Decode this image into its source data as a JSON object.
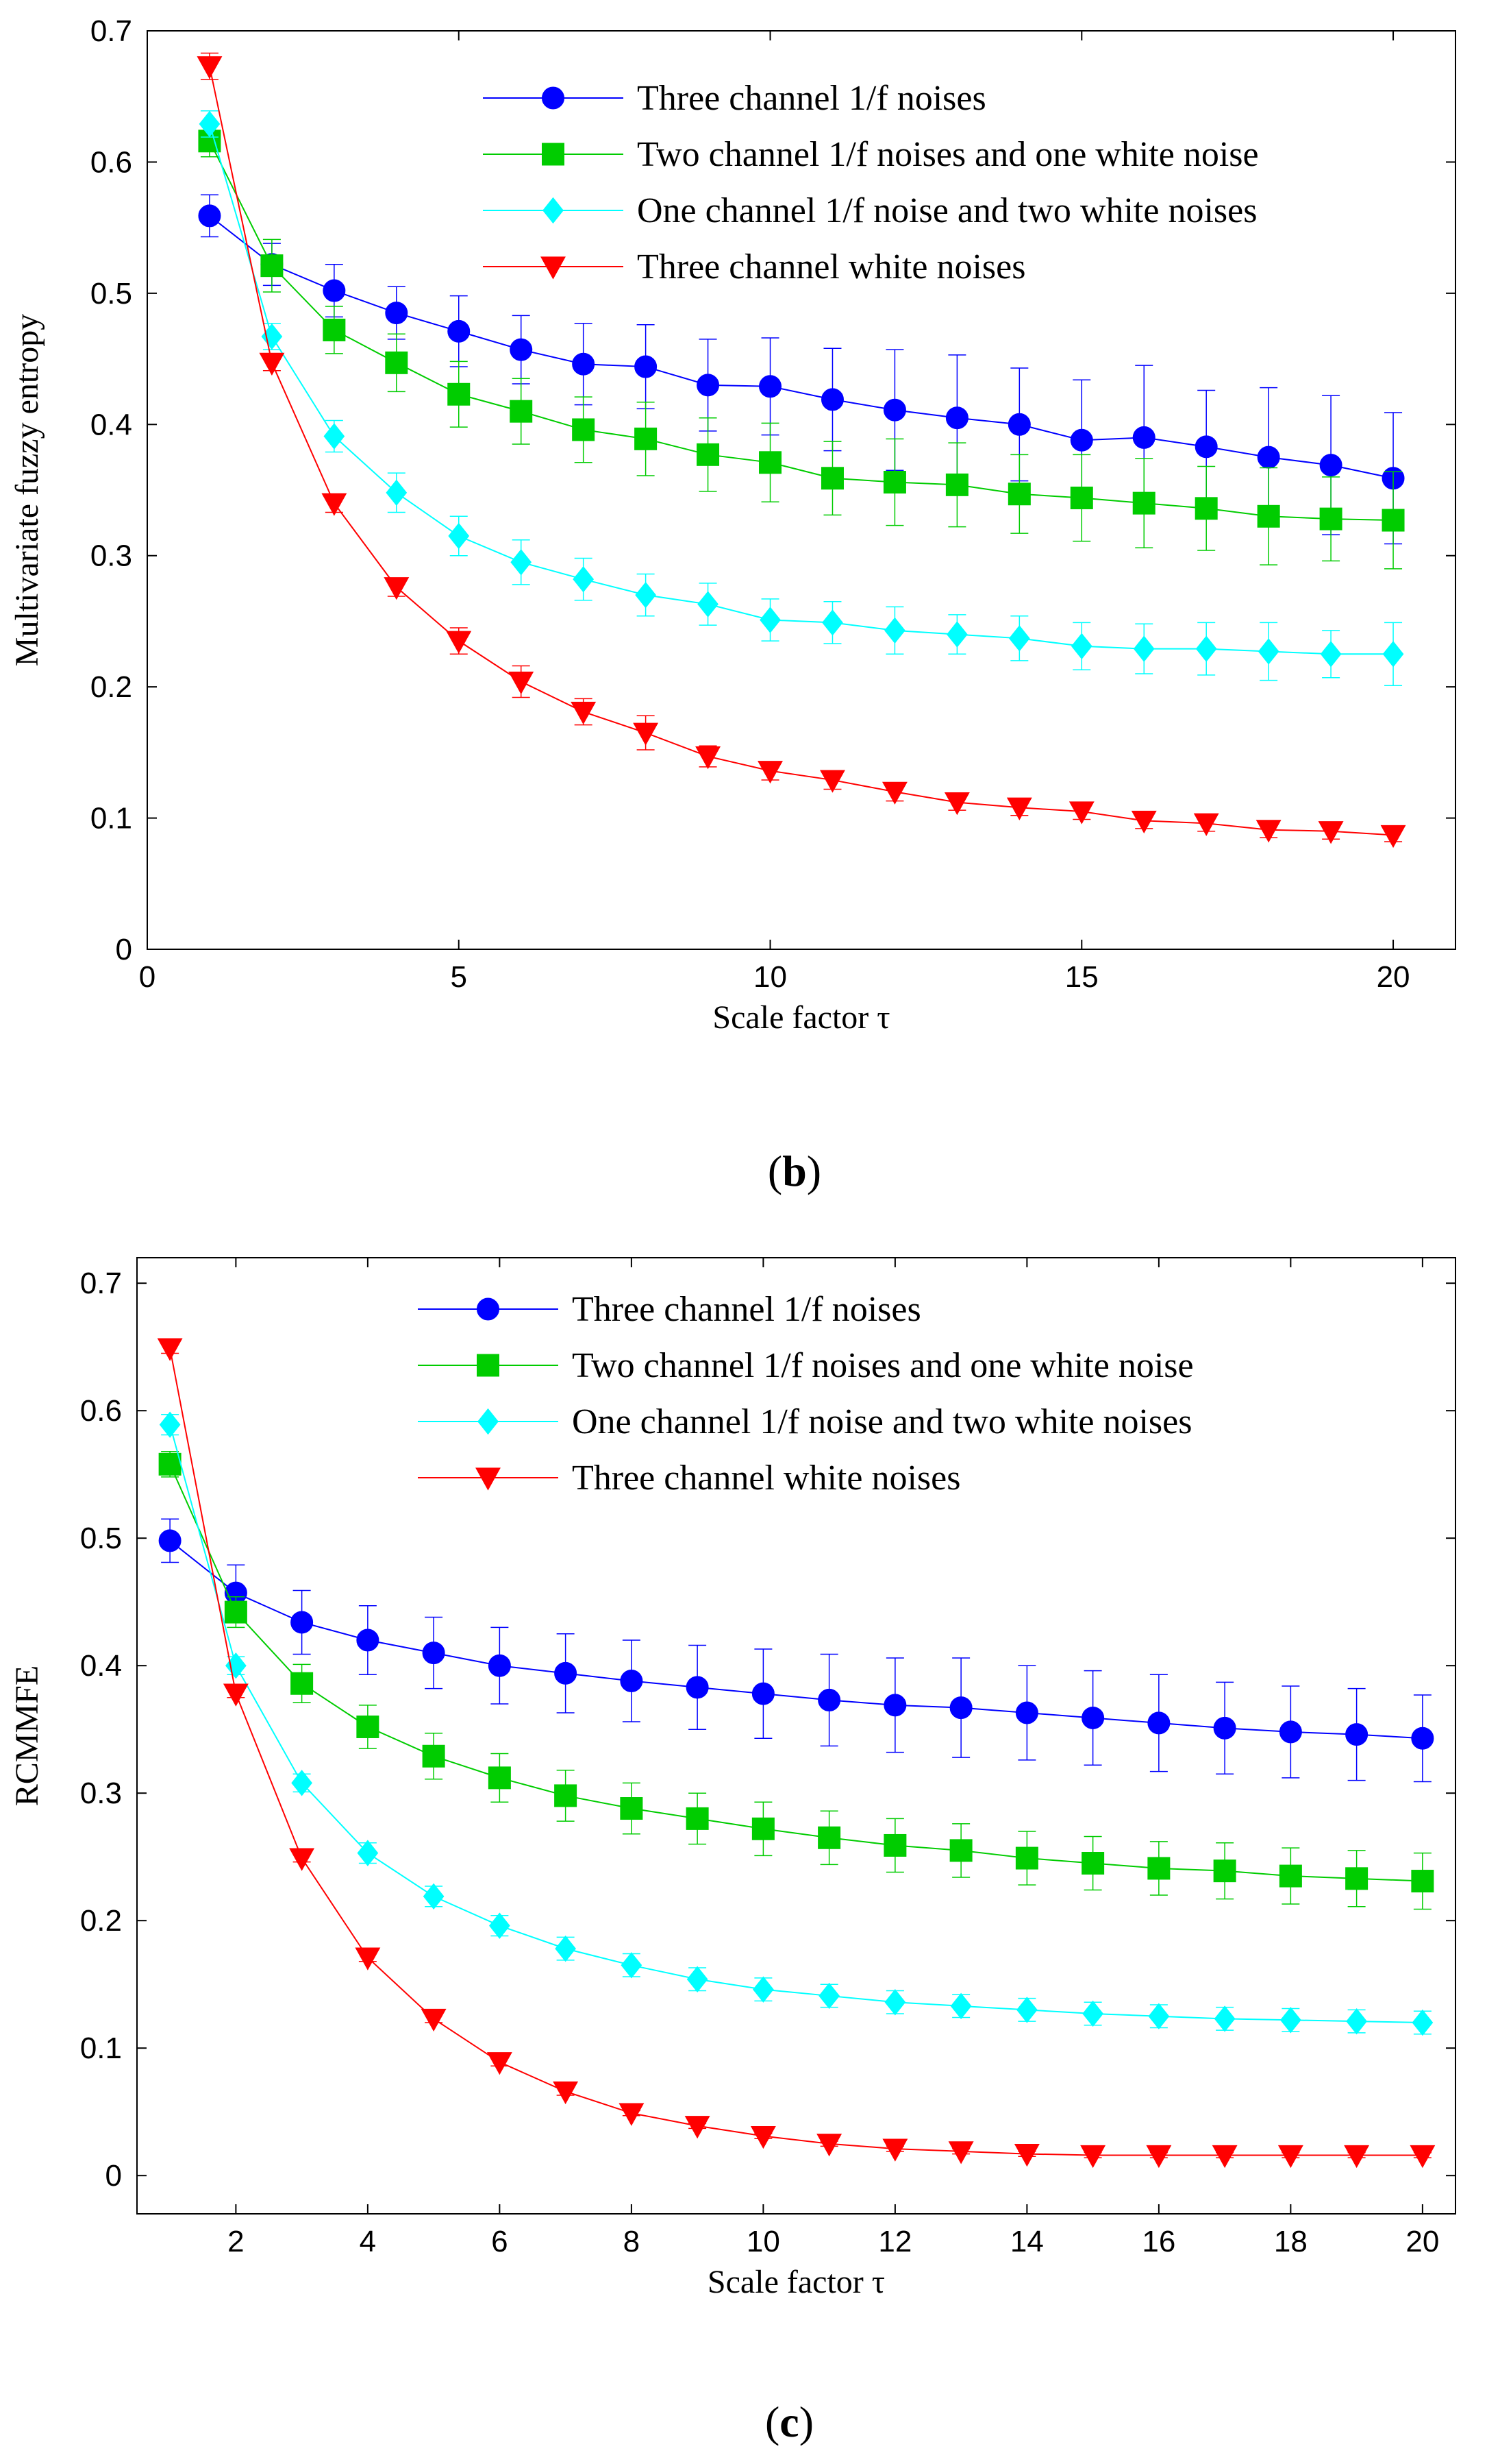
{
  "series_colors": [
    "#0000ff",
    "#00cc00",
    "#00ffff",
    "#ff0000"
  ],
  "series_markers": [
    "circle",
    "square",
    "diamond",
    "triangle-down"
  ],
  "chart_data": [
    {
      "type": "line",
      "panel": "b",
      "caption": {
        "open": "(",
        "letter": "b",
        "close": ")"
      },
      "xlabel": "Scale factor τ",
      "ylabel": "Multivariate fuzzy entropy",
      "xlim": [
        0,
        21
      ],
      "ylim": [
        0,
        0.7
      ],
      "xticks": [
        0,
        5,
        10,
        15,
        20
      ],
      "xtick_labels": [
        "0",
        "5",
        "10",
        "15",
        "20"
      ],
      "yticks": [
        0,
        0.1,
        0.2,
        0.3,
        0.4,
        0.5,
        0.6,
        0.7
      ],
      "ytick_labels": [
        "0",
        "0.1",
        "0.2",
        "0.3",
        "0.4",
        "0.5",
        "0.6",
        "0.7"
      ],
      "legend_position": "top-right",
      "x": [
        1,
        2,
        3,
        4,
        5,
        6,
        7,
        8,
        9,
        10,
        11,
        12,
        13,
        14,
        15,
        16,
        17,
        18,
        19,
        20
      ],
      "series": [
        {
          "name": "Three channel 1/f noises",
          "values": [
            0.559,
            0.522,
            0.502,
            0.485,
            0.471,
            0.457,
            0.446,
            0.444,
            0.43,
            0.429,
            0.419,
            0.411,
            0.405,
            0.4,
            0.388,
            0.39,
            0.383,
            0.375,
            0.369,
            0.359
          ],
          "errors": [
            0.016,
            0.016,
            0.02,
            0.02,
            0.027,
            0.026,
            0.031,
            0.032,
            0.035,
            0.037,
            0.039,
            0.046,
            0.048,
            0.043,
            0.046,
            0.055,
            0.043,
            0.053,
            0.053,
            0.05
          ]
        },
        {
          "name": "Two channel 1/f noises and one white noise",
          "values": [
            0.616,
            0.521,
            0.472,
            0.447,
            0.423,
            0.41,
            0.396,
            0.389,
            0.377,
            0.371,
            0.359,
            0.356,
            0.354,
            0.347,
            0.344,
            0.34,
            0.336,
            0.33,
            0.328,
            0.327
          ],
          "errors": [
            0.012,
            0.02,
            0.018,
            0.022,
            0.025,
            0.025,
            0.025,
            0.028,
            0.028,
            0.03,
            0.028,
            0.033,
            0.032,
            0.03,
            0.033,
            0.034,
            0.032,
            0.037,
            0.032,
            0.037
          ]
        },
        {
          "name": "One channel 1/f noise and two white noises",
          "values": [
            0.629,
            0.467,
            0.391,
            0.348,
            0.315,
            0.295,
            0.282,
            0.27,
            0.263,
            0.251,
            0.249,
            0.243,
            0.24,
            0.237,
            0.231,
            0.229,
            0.229,
            0.227,
            0.225,
            0.225
          ],
          "errors": [
            0.01,
            0.01,
            0.012,
            0.015,
            0.015,
            0.017,
            0.016,
            0.016,
            0.016,
            0.016,
            0.016,
            0.018,
            0.015,
            0.017,
            0.018,
            0.019,
            0.02,
            0.022,
            0.018,
            0.024
          ]
        },
        {
          "name": "Three channel white noises",
          "values": [
            0.673,
            0.447,
            0.34,
            0.276,
            0.235,
            0.204,
            0.181,
            0.165,
            0.147,
            0.136,
            0.129,
            0.12,
            0.112,
            0.108,
            0.105,
            0.098,
            0.096,
            0.091,
            0.09,
            0.087
          ],
          "errors": [
            0.01,
            0.006,
            0.007,
            0.007,
            0.01,
            0.012,
            0.01,
            0.013,
            0.008,
            0.007,
            0.007,
            0.007,
            0.006,
            0.006,
            0.006,
            0.006,
            0.006,
            0.006,
            0.006,
            0.005
          ]
        }
      ]
    },
    {
      "type": "line",
      "panel": "c",
      "caption": {
        "open": "(",
        "letter": "c",
        "close": ")"
      },
      "xlabel": "Scale factor τ",
      "ylabel": "RCMMFE",
      "xlim": [
        0.5,
        20.5
      ],
      "ylim": [
        -0.03,
        0.72
      ],
      "xticks": [
        2,
        4,
        6,
        8,
        10,
        12,
        14,
        16,
        18,
        20
      ],
      "xtick_labels": [
        "2",
        "4",
        "6",
        "8",
        "10",
        "12",
        "14",
        "16",
        "18",
        "20"
      ],
      "yticks": [
        0,
        0.1,
        0.2,
        0.3,
        0.4,
        0.5,
        0.6,
        0.7
      ],
      "ytick_labels": [
        "0",
        "0.1",
        "0.2",
        "0.3",
        "0.4",
        "0.5",
        "0.6",
        "0.7"
      ],
      "legend_position": "top-right",
      "x": [
        1,
        2,
        3,
        4,
        5,
        6,
        7,
        8,
        9,
        10,
        11,
        12,
        13,
        14,
        15,
        16,
        17,
        18,
        19,
        20
      ],
      "series": [
        {
          "name": "Three channel 1/f noises",
          "values": [
            0.498,
            0.457,
            0.434,
            0.42,
            0.41,
            0.4,
            0.394,
            0.388,
            0.383,
            0.378,
            0.373,
            0.369,
            0.367,
            0.363,
            0.359,
            0.355,
            0.351,
            0.348,
            0.346,
            0.343
          ],
          "errors": [
            0.017,
            0.022,
            0.025,
            0.027,
            0.028,
            0.03,
            0.031,
            0.032,
            0.033,
            0.035,
            0.036,
            0.037,
            0.039,
            0.037,
            0.037,
            0.038,
            0.036,
            0.036,
            0.036,
            0.034
          ]
        },
        {
          "name": "Two channel 1/f noises and one white noise",
          "values": [
            0.558,
            0.442,
            0.386,
            0.352,
            0.329,
            0.312,
            0.298,
            0.288,
            0.28,
            0.272,
            0.265,
            0.259,
            0.255,
            0.249,
            0.245,
            0.241,
            0.239,
            0.235,
            0.233,
            0.231
          ],
          "errors": [
            0.01,
            0.012,
            0.015,
            0.017,
            0.018,
            0.019,
            0.02,
            0.02,
            0.02,
            0.021,
            0.021,
            0.021,
            0.021,
            0.021,
            0.021,
            0.021,
            0.022,
            0.022,
            0.022,
            0.022
          ]
        },
        {
          "name": "One channel 1/f noise and two white noises",
          "values": [
            0.589,
            0.4,
            0.308,
            0.253,
            0.219,
            0.196,
            0.178,
            0.165,
            0.154,
            0.146,
            0.141,
            0.136,
            0.133,
            0.13,
            0.127,
            0.125,
            0.123,
            0.122,
            0.121,
            0.12
          ],
          "errors": [
            0.008,
            0.007,
            0.007,
            0.008,
            0.008,
            0.008,
            0.009,
            0.009,
            0.009,
            0.009,
            0.009,
            0.009,
            0.009,
            0.009,
            0.009,
            0.009,
            0.009,
            0.009,
            0.009,
            0.009
          ]
        },
        {
          "name": "Three channel white noises",
          "values": [
            0.649,
            0.378,
            0.249,
            0.171,
            0.123,
            0.089,
            0.066,
            0.049,
            0.039,
            0.031,
            0.025,
            0.021,
            0.019,
            0.017,
            0.016,
            0.016,
            0.016,
            0.016,
            0.016,
            0.016
          ],
          "errors": [
            0.004,
            0.003,
            0.003,
            0.003,
            0.003,
            0.003,
            0.003,
            0.002,
            0.002,
            0.002,
            0.002,
            0.002,
            0.002,
            0.002,
            0.002,
            0.002,
            0.002,
            0.002,
            0.002,
            0.002
          ]
        }
      ]
    }
  ]
}
